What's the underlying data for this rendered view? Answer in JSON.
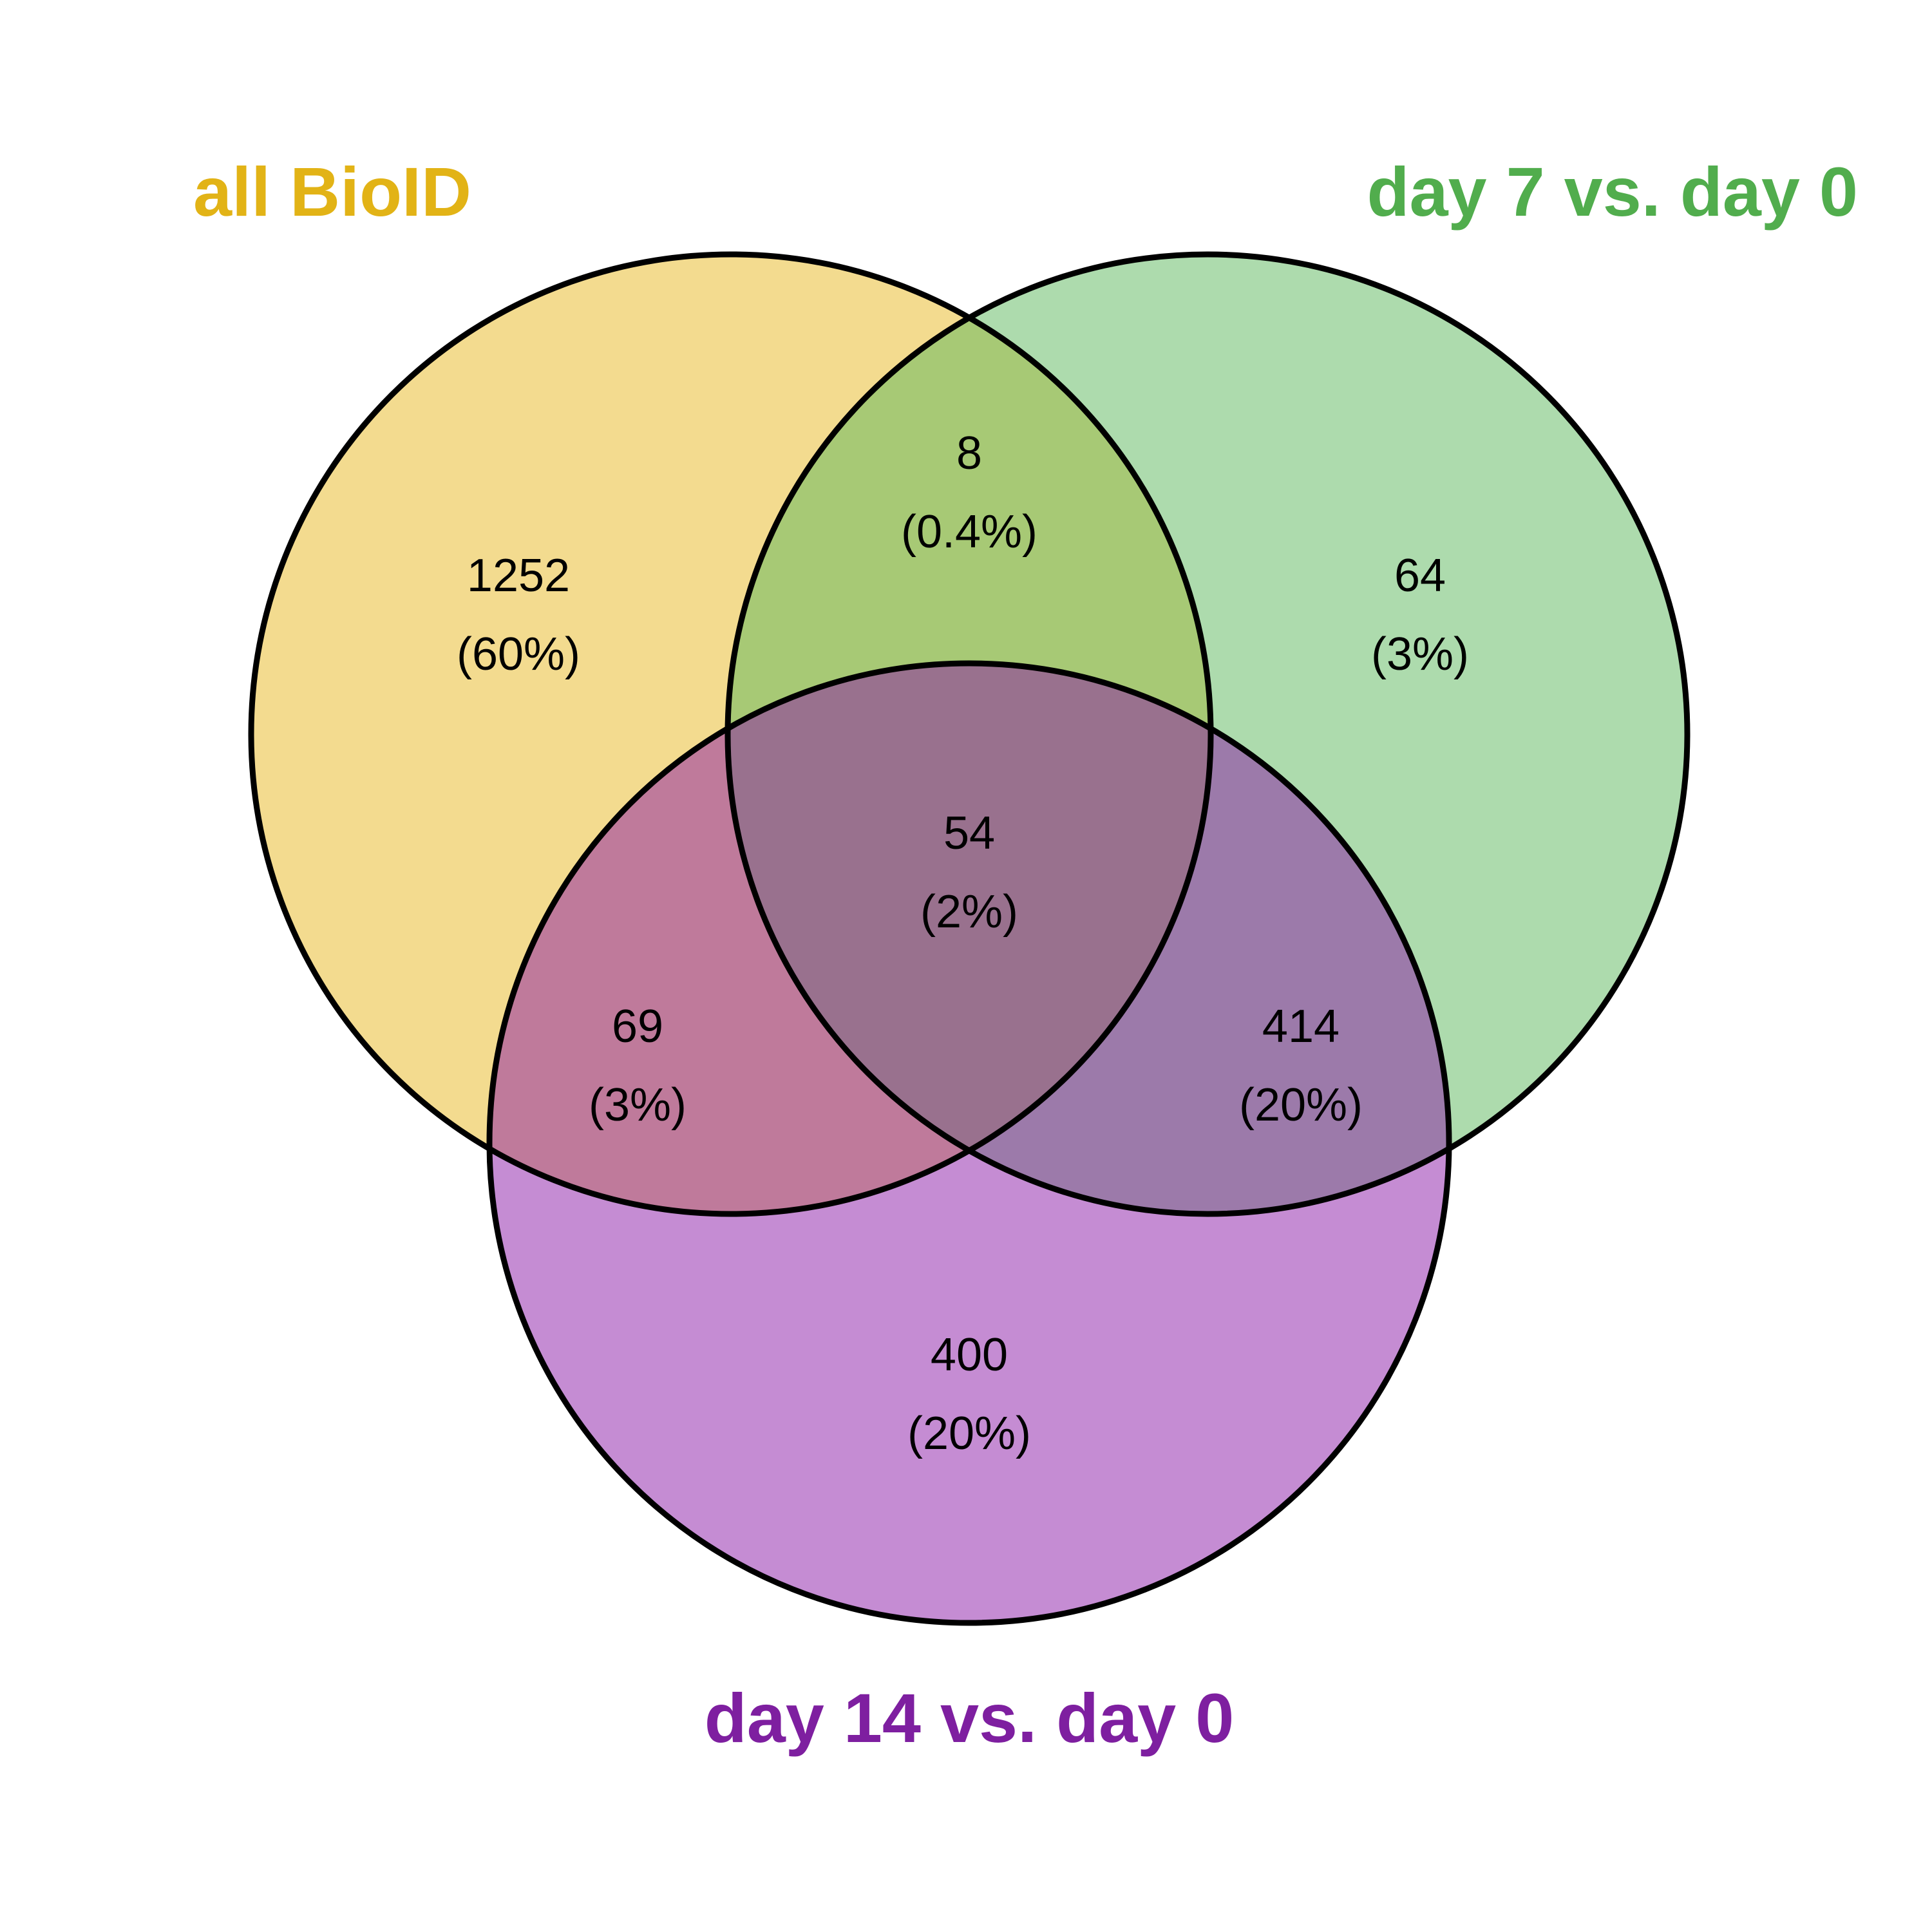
{
  "sets": [
    {
      "id": "a",
      "label": "all BioID",
      "fill": "#e8b820",
      "text_color": "#e2b316"
    },
    {
      "id": "b",
      "label": "day 7 vs. day 0",
      "fill": "#5cb85c",
      "text_color": "#51ad4d"
    },
    {
      "id": "c",
      "label": "day 14 vs. day 0",
      "fill": "#8c1aa8",
      "text_color": "#7e1fa0"
    }
  ],
  "regions": [
    {
      "id": "a_only",
      "sets": [
        "all BioID"
      ],
      "count": "1252",
      "percent": "(60%)"
    },
    {
      "id": "a_b",
      "sets": [
        "all BioID",
        "day 7 vs. day 0"
      ],
      "count": "8",
      "percent": "(0.4%)"
    },
    {
      "id": "b_only",
      "sets": [
        "day 7 vs. day 0"
      ],
      "count": "64",
      "percent": "(3%)"
    },
    {
      "id": "a_b_c",
      "sets": [
        "all BioID",
        "day 7 vs. day 0",
        "day 14 vs. day 0"
      ],
      "count": "54",
      "percent": "(2%)"
    },
    {
      "id": "a_c",
      "sets": [
        "all BioID",
        "day 14 vs. day 0"
      ],
      "count": "69",
      "percent": "(3%)"
    },
    {
      "id": "b_c",
      "sets": [
        "day 7 vs. day 0",
        "day 14 vs. day 0"
      ],
      "count": "414",
      "percent": "(20%)"
    },
    {
      "id": "c_only",
      "sets": [
        "day 14 vs. day 0"
      ],
      "count": "400",
      "percent": "(20%)"
    }
  ]
}
